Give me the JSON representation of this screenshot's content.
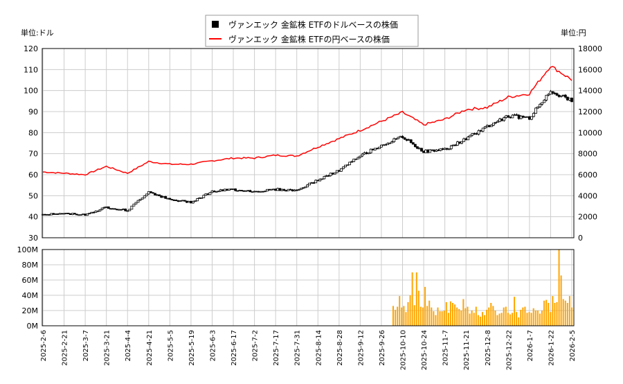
{
  "chart_data": [
    {
      "type": "candlestick+line",
      "left_axis_unit": "単位:ドル",
      "right_axis_unit": "単位:円",
      "ylim_left": [
        30,
        120
      ],
      "ylim_right": [
        0,
        18000
      ],
      "left_ticks": [
        30,
        40,
        50,
        60,
        70,
        80,
        90,
        100,
        110,
        120
      ],
      "right_ticks": [
        0,
        2000,
        4000,
        6000,
        8000,
        10000,
        12000,
        14000,
        16000,
        18000
      ],
      "grid": true,
      "legend_placement": "top-center",
      "legend": [
        "ヴァンエック 金鉱株 ETFのドルベースの株価",
        "ヴァンエック 金鉱株 ETFの円ベースの株価"
      ],
      "x_ticks": [
        "2025-2-6",
        "2025-2-21",
        "2025-3-7",
        "2025-3-21",
        "2025-4-4",
        "2025-4-21",
        "2025-5-5",
        "2025-5-19",
        "2025-6-3",
        "2025-6-17",
        "2025-7-2",
        "2025-7-17",
        "2025-7-31",
        "2025-8-14",
        "2025-8-28",
        "2025-9-12",
        "2025-9-26",
        "2025-10-10",
        "2025-10-24",
        "2025-11-7",
        "2025-11-21",
        "2025-12-8",
        "2025-12-22",
        "2026-1-7",
        "2026-1-22",
        "2026-2-5"
      ],
      "series": [
        {
          "name": "ヴァンエック 金鉱株 ETFのドルベースの株価",
          "color": "#000000",
          "values": [
            41,
            41.5,
            41,
            44.5,
            43,
            52,
            48,
            47,
            52,
            53,
            52,
            53,
            52.5,
            57.5,
            62,
            69,
            74,
            78,
            71,
            72,
            77,
            83,
            88,
            87,
            100,
            95
          ]
        },
        {
          "name": "ヴァンエック 金鉱株 ETFの円ベースの株価",
          "color": "#ff0000",
          "values": [
            6260,
            6140,
            6000,
            6790,
            6130,
            7250,
            6990,
            6990,
            7320,
            7580,
            7580,
            7850,
            7780,
            8640,
            9430,
            10220,
            11070,
            11930,
            10750,
            11270,
            12200,
            12390,
            13380,
            13710,
            16350,
            15030
          ]
        }
      ]
    },
    {
      "type": "bar",
      "ylim": [
        0,
        100000000
      ],
      "y_ticks": [
        "0M",
        "20M",
        "40M",
        "60M",
        "80M",
        "100M"
      ],
      "color": "#ffa500",
      "start": "2025-10-6",
      "end": "2026-2-5",
      "values_millions": [
        26,
        21,
        25,
        39,
        24,
        26,
        18,
        31,
        40,
        70,
        27,
        70,
        46,
        25,
        24,
        51,
        26,
        33,
        24,
        19,
        14,
        24,
        19,
        19,
        20,
        31,
        17,
        32,
        30,
        28,
        24,
        22,
        20,
        35,
        23,
        25,
        16,
        20,
        17,
        25,
        14,
        12,
        18,
        14,
        21,
        24,
        30,
        26,
        20,
        14,
        16,
        17,
        24,
        25,
        17,
        15,
        17,
        38,
        18,
        11,
        21,
        24,
        25,
        17,
        18,
        17,
        23,
        20,
        20,
        16,
        20,
        33,
        34,
        30,
        18,
        39,
        30,
        31,
        100,
        66,
        35,
        33,
        30,
        39,
        24
      ]
    }
  ]
}
